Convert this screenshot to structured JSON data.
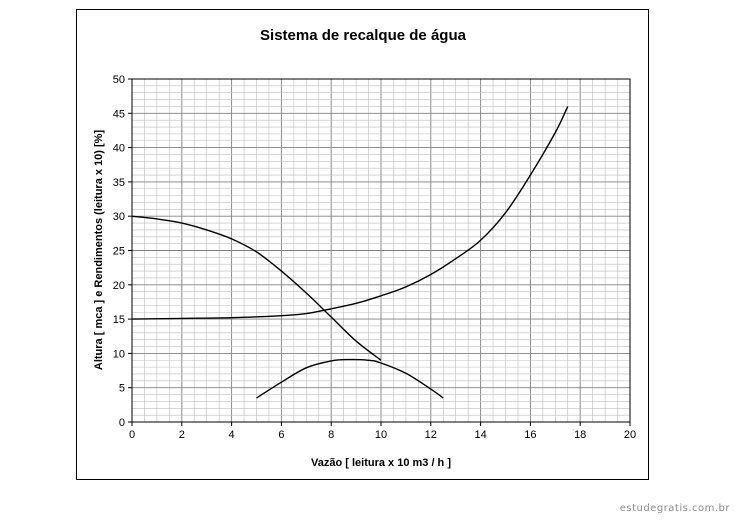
{
  "chart_data": {
    "type": "line",
    "title": "Sistema de recalque de água",
    "xlabel": "Vazão  [ leitura x 10 m3 / h ]",
    "ylabel": "Altura [ mca ] e Rendimentos (leitura x 10) [%]",
    "xlim": [
      0,
      20
    ],
    "ylim": [
      0,
      50
    ],
    "x_ticks": [
      "0",
      "2",
      "4",
      "6",
      "8",
      "10",
      "12",
      "14",
      "16",
      "18",
      "20"
    ],
    "y_ticks": [
      "0",
      "5",
      "10",
      "15",
      "20",
      "25",
      "30",
      "35",
      "40",
      "45",
      "50"
    ],
    "grid": true,
    "colors": {
      "line": "#000000",
      "grid_major": "#808080",
      "grid_minor": "#bdbdbd"
    },
    "series": [
      {
        "values": [
          [
            0,
            30
          ],
          [
            1,
            29.6
          ],
          [
            2,
            29
          ],
          [
            3,
            28
          ],
          [
            4,
            26.7
          ],
          [
            5,
            24.8
          ],
          [
            6,
            22
          ],
          [
            7,
            18.8
          ],
          [
            8,
            15.3
          ],
          [
            9,
            11.8
          ],
          [
            10,
            9
          ]
        ]
      },
      {
        "values": [
          [
            0,
            15
          ],
          [
            2,
            15.1
          ],
          [
            4,
            15.2
          ],
          [
            6,
            15.5
          ],
          [
            7,
            15.8
          ],
          [
            8,
            16.5
          ],
          [
            9,
            17.3
          ],
          [
            10,
            18.4
          ],
          [
            11,
            19.7
          ],
          [
            12,
            21.5
          ],
          [
            13,
            23.8
          ],
          [
            14,
            26.5
          ],
          [
            15,
            30.5
          ],
          [
            16,
            36
          ],
          [
            17,
            42.2
          ],
          [
            17.5,
            46
          ]
        ]
      },
      {
        "values": [
          [
            5,
            3.5
          ],
          [
            6,
            5.8
          ],
          [
            7,
            7.9
          ],
          [
            8,
            8.9
          ],
          [
            8.7,
            9.1
          ],
          [
            9.5,
            9
          ],
          [
            10,
            8.6
          ],
          [
            11,
            7.1
          ],
          [
            12,
            4.8
          ],
          [
            12.5,
            3.5
          ]
        ]
      }
    ]
  },
  "watermark": "estudegratis.com.br"
}
